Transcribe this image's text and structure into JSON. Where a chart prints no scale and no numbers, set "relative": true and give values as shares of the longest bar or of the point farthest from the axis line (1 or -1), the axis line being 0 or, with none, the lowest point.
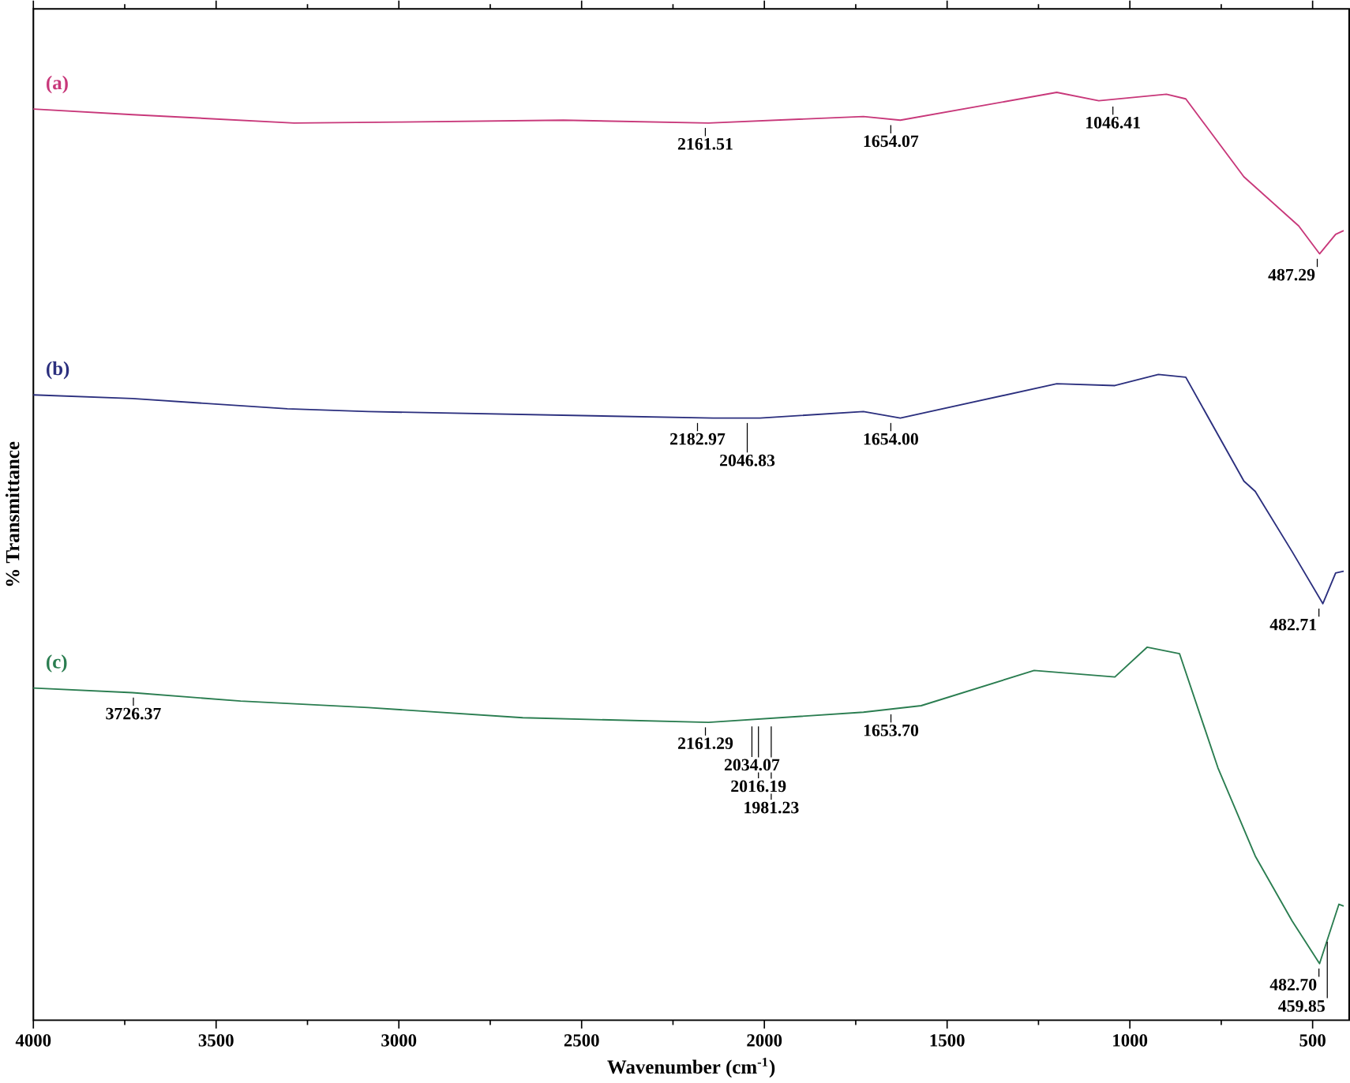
{
  "chart_data": {
    "type": "line",
    "relative": true,
    "xlabel": "Wavenumber (cm$^{-1}$)",
    "ylabel": "% Transmittance",
    "xlim": [
      4000,
      400
    ],
    "xticks": [
      4000,
      3500,
      3000,
      2500,
      2000,
      1500,
      1000,
      500
    ],
    "marker": "none",
    "line_style": "solid",
    "grid": false,
    "series": [
      {
        "name": "(a)",
        "color": "#c8387a",
        "x": [
          4000,
          3729,
          3287,
          3000,
          2550,
          2153,
          1729,
          1628,
          1200,
          1085,
          900,
          847,
          688,
          538,
          481,
          437,
          415
        ],
        "values": [
          0.982,
          0.976,
          0.967,
          0.968,
          0.97,
          0.967,
          0.974,
          0.97,
          1.0,
          0.991,
          0.998,
          0.993,
          0.909,
          0.856,
          0.826,
          0.847,
          0.851
        ]
      },
      {
        "name": "(b)",
        "color": "#2b2f7e",
        "x": [
          4000,
          3729,
          3305,
          3084,
          2140,
          2012,
          1729,
          1628,
          1200,
          1041,
          922,
          847,
          688,
          657,
          556,
          472,
          437,
          415
        ],
        "values": [
          0.674,
          0.67,
          0.659,
          0.656,
          0.649,
          0.649,
          0.656,
          0.649,
          0.686,
          0.684,
          0.696,
          0.693,
          0.581,
          0.57,
          0.505,
          0.449,
          0.482,
          0.484
        ]
      },
      {
        "name": "(c)",
        "color": "#2a7d50",
        "x": [
          4000,
          3729,
          3433,
          3084,
          2661,
          2153,
          1729,
          1571,
          1262,
          1041,
          953,
          864,
          759,
          657,
          556,
          481,
          428,
          415
        ],
        "values": [
          0.358,
          0.353,
          0.344,
          0.337,
          0.326,
          0.321,
          0.332,
          0.339,
          0.377,
          0.37,
          0.402,
          0.395,
          0.272,
          0.177,
          0.107,
          0.061,
          0.125,
          0.123
        ]
      }
    ],
    "annotations": [
      {
        "text": "2161.51",
        "x": 2161.51,
        "y": 0.967
      },
      {
        "text": "1654.07",
        "x": 1654.07,
        "y": 0.97
      },
      {
        "text": "1046.41",
        "x": 1046.41,
        "y": 0.99
      },
      {
        "text": "487.29",
        "x": 487.29,
        "y": 0.826
      },
      {
        "text": "2182.97",
        "x": 2182.97,
        "y": 0.649
      },
      {
        "text": "2046.83",
        "x": 2046.83,
        "y": 0.649
      },
      {
        "text": "1654.00",
        "x": 1654.0,
        "y": 0.649
      },
      {
        "text": "482.71",
        "x": 482.71,
        "y": 0.449
      },
      {
        "text": "3726.37",
        "x": 3726.37,
        "y": 0.353
      },
      {
        "text": "2161.29",
        "x": 2161.29,
        "y": 0.321
      },
      {
        "text": "2034.07",
        "x": 2034.07,
        "y": 0.322
      },
      {
        "text": "2016.19",
        "x": 2016.19,
        "y": 0.322
      },
      {
        "text": "1981.23",
        "x": 1981.23,
        "y": 0.322
      },
      {
        "text": "1653.70",
        "x": 1653.7,
        "y": 0.335
      },
      {
        "text": "482.70",
        "x": 482.7,
        "y": 0.061
      },
      {
        "text": "459.85",
        "x": 459.85,
        "y": 0.09
      }
    ]
  }
}
